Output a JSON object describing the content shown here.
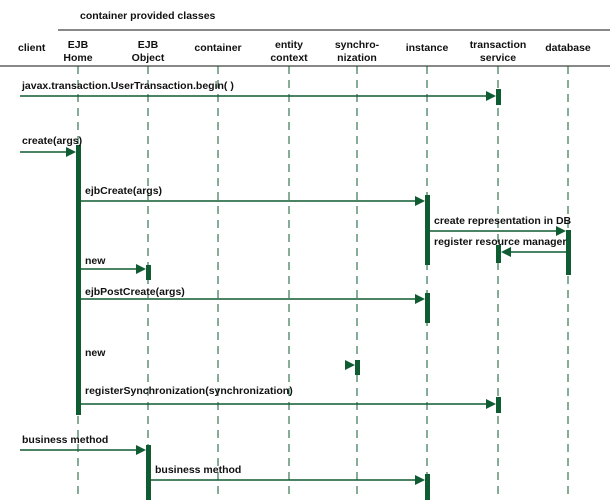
{
  "header": {
    "group_title": "container provided classes"
  },
  "lifelines": [
    {
      "id": "client",
      "lines": [
        "client"
      ]
    },
    {
      "id": "ejb_home",
      "lines": [
        "EJB",
        "Home"
      ]
    },
    {
      "id": "ejb_object",
      "lines": [
        "EJB",
        "Object"
      ]
    },
    {
      "id": "container",
      "lines": [
        "container"
      ]
    },
    {
      "id": "entity_context",
      "lines": [
        "entity",
        "context"
      ]
    },
    {
      "id": "synchronization",
      "lines": [
        "synchro-",
        "nization"
      ]
    },
    {
      "id": "instance",
      "lines": [
        "instance"
      ]
    },
    {
      "id": "transaction_service",
      "lines": [
        "transaction",
        "service"
      ]
    },
    {
      "id": "database",
      "lines": [
        "database"
      ]
    }
  ],
  "messages": [
    {
      "id": "begin",
      "label": "javax.transaction.UserTransaction.begin( )",
      "from": "client",
      "to": "transaction_service"
    },
    {
      "id": "create",
      "label": "create(args)",
      "from": "client",
      "to": "ejb_home"
    },
    {
      "id": "ejbcreate",
      "label": "ejbCreate(args)",
      "from": "ejb_home",
      "to": "instance"
    },
    {
      "id": "create_representation",
      "label": "create representation in DB",
      "from": "instance",
      "to": "database"
    },
    {
      "id": "register_resource_manager",
      "label": "register resource manager",
      "from": "database",
      "to": "transaction_service"
    },
    {
      "id": "new_object",
      "label": "new",
      "from": "ejb_home",
      "to": "ejb_object"
    },
    {
      "id": "ejbpostcreate",
      "label": "ejbPostCreate(args)",
      "from": "ejb_home",
      "to": "instance"
    },
    {
      "id": "new_sync",
      "label": "new",
      "from": "ejb_home",
      "to": "synchronization"
    },
    {
      "id": "register_sync",
      "label": "registerSynchronization(synchronization)",
      "from": "ejb_home",
      "to": "transaction_service"
    },
    {
      "id": "business_method_client",
      "label": "business method",
      "from": "client",
      "to": "ejb_object"
    },
    {
      "id": "business_method_instance",
      "label": "business method",
      "from": "ejb_object",
      "to": "instance"
    }
  ],
  "colors": {
    "line": "#0f5b32",
    "activation": "#0f5b32",
    "text": "#111111"
  }
}
